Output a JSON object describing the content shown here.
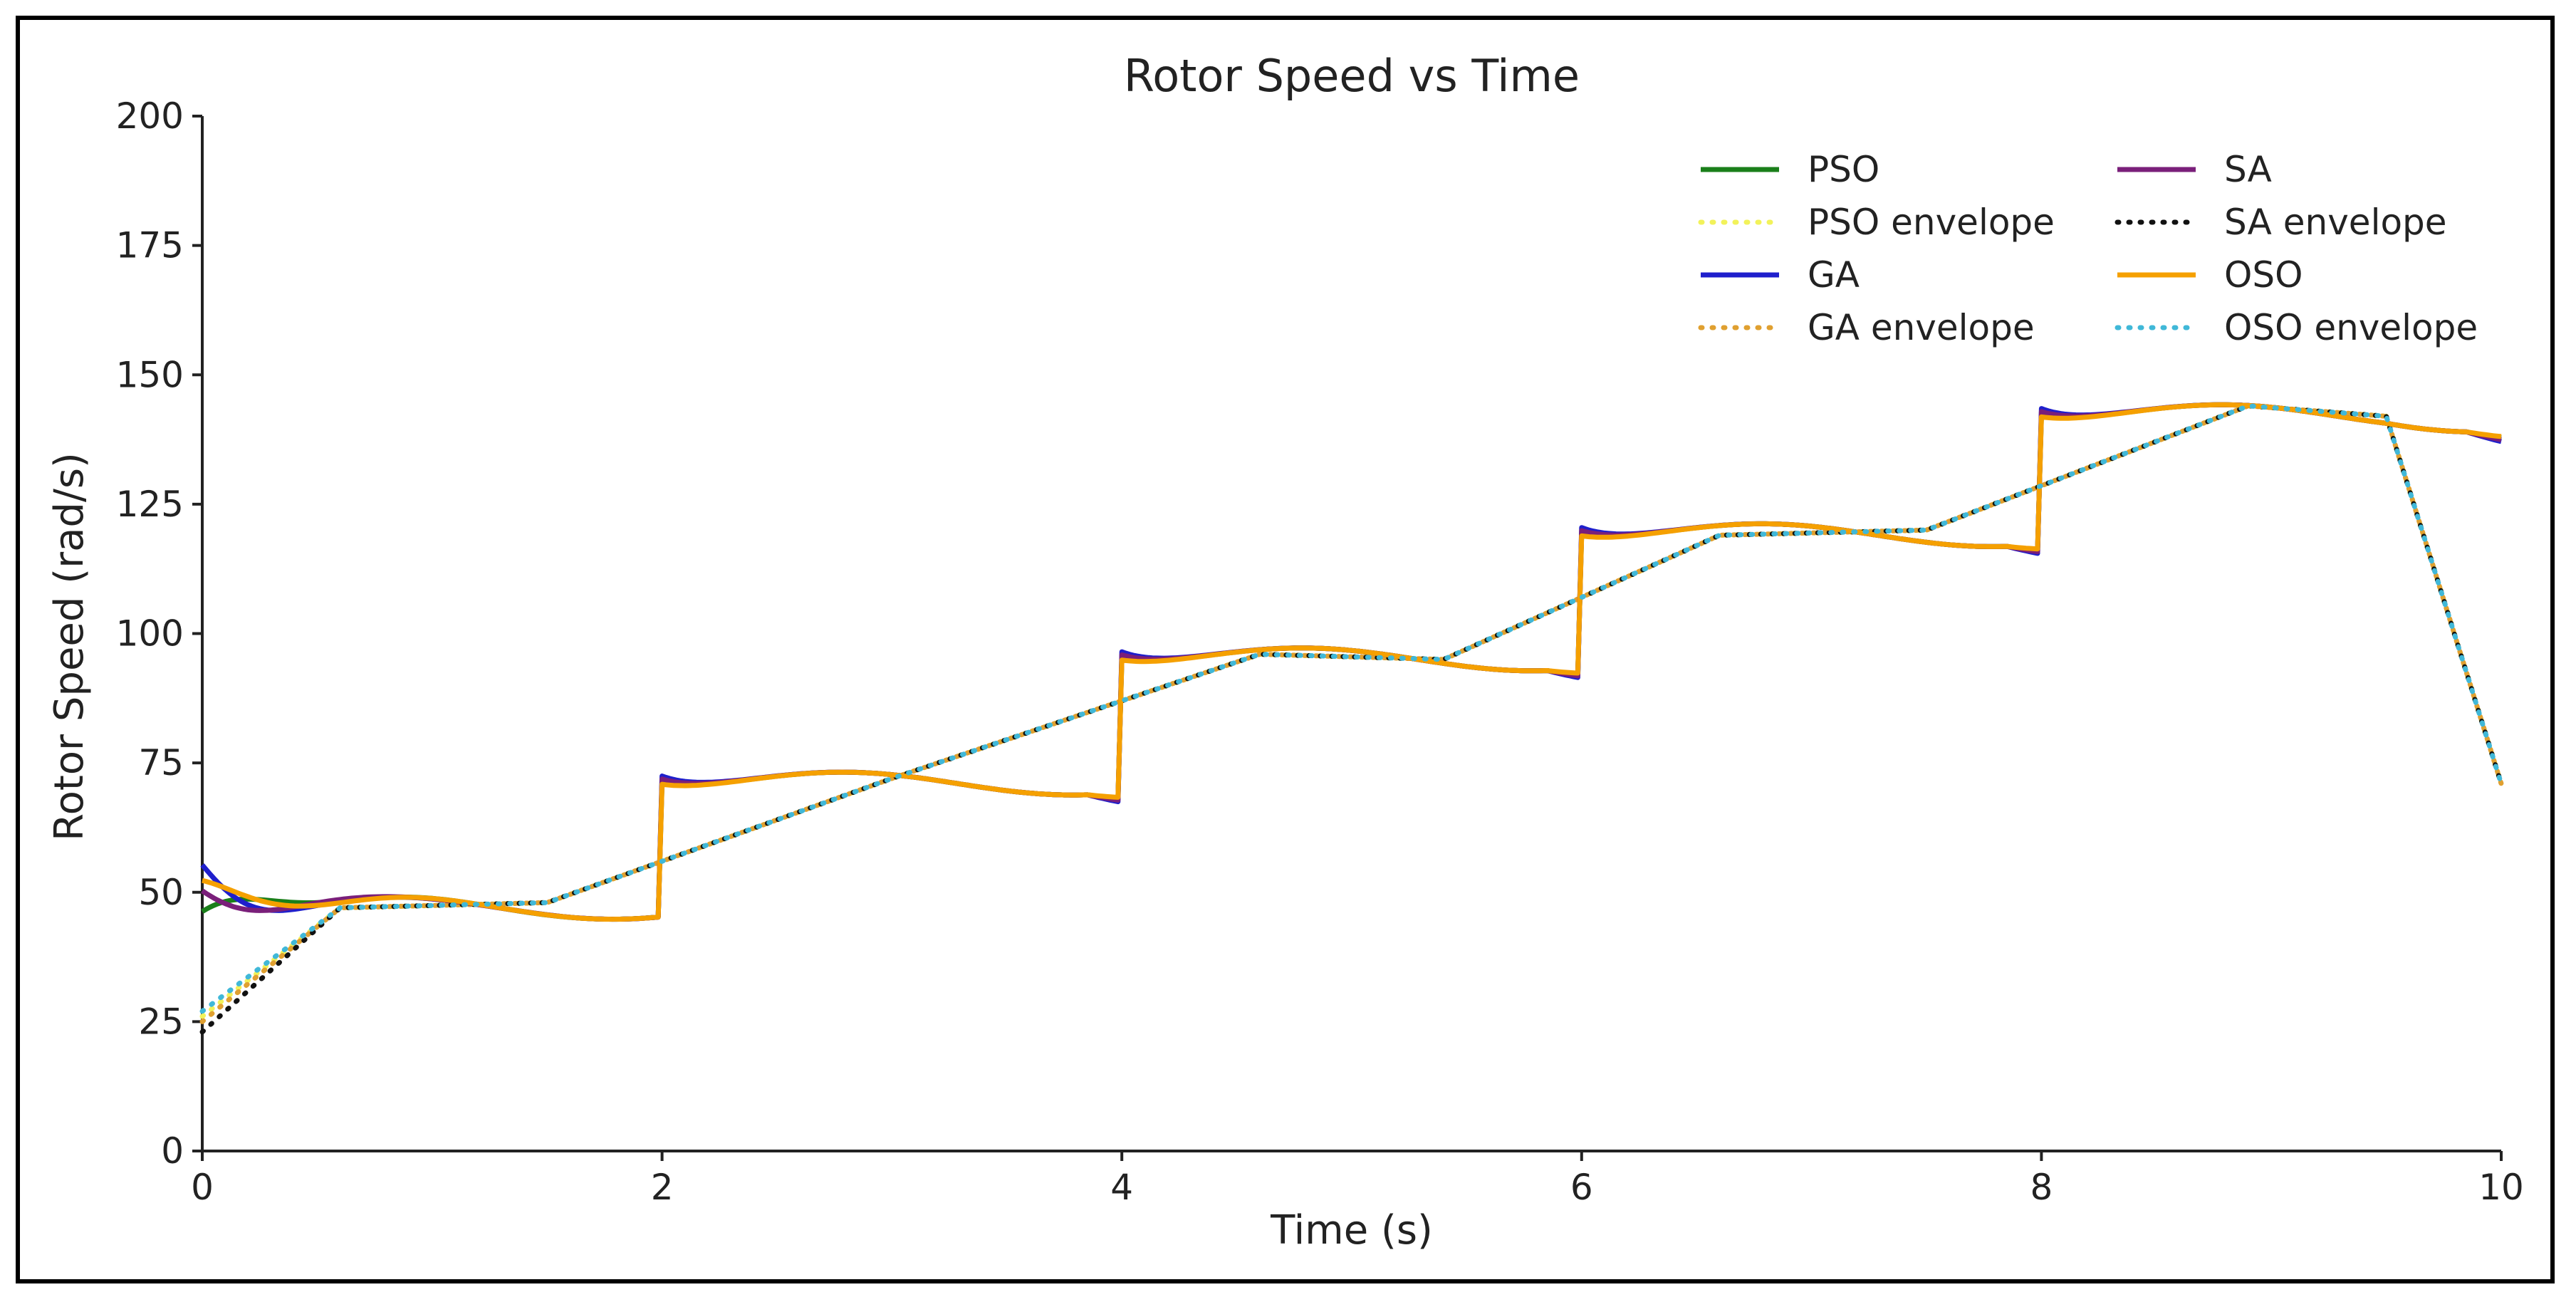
{
  "chart_data": {
    "type": "line",
    "title": "Rotor Speed vs Time",
    "xlabel": "Time (s)",
    "ylabel": "Rotor Speed (rad/s)",
    "xlim": [
      0,
      10
    ],
    "ylim": [
      0,
      200
    ],
    "xticks": [
      0,
      2,
      4,
      6,
      8,
      10
    ],
    "yticks": [
      0,
      25,
      50,
      75,
      100,
      125,
      150,
      175,
      200
    ],
    "grid": false,
    "legend_position": "top-right",
    "legend_columns": 2,
    "setpoint_steps": [
      {
        "t_start": 0,
        "t_end": 2,
        "value": 47
      },
      {
        "t_start": 2,
        "t_end": 4,
        "value": 71
      },
      {
        "t_start": 4,
        "t_end": 6,
        "value": 95
      },
      {
        "t_start": 6,
        "t_end": 8,
        "value": 119
      },
      {
        "t_start": 8,
        "t_end": 10,
        "value": 142
      }
    ],
    "envelope_points": [
      {
        "t": 0,
        "v": 24
      },
      {
        "t": 0.6,
        "v": 47
      },
      {
        "t": 1.5,
        "v": 48
      },
      {
        "t": 3,
        "v": 72
      },
      {
        "t": 4.6,
        "v": 96
      },
      {
        "t": 5.4,
        "v": 95
      },
      {
        "t": 6.6,
        "v": 119
      },
      {
        "t": 7.5,
        "v": 120
      },
      {
        "t": 8.9,
        "v": 144
      },
      {
        "t": 9.5,
        "v": 142
      },
      {
        "t": 10,
        "v": 71
      }
    ],
    "series": [
      {
        "name": "PSO",
        "style": "solid",
        "color": "#1a7f1a",
        "initial": 48,
        "overshoot": 4.0,
        "ripple": 1.0,
        "peak_t": 0.25
      },
      {
        "name": "PSO envelope",
        "style": "dotted",
        "color": "#f2f25a",
        "envelope_start": 26
      },
      {
        "name": "GA",
        "style": "solid",
        "color": "#1f1fcc",
        "initial": 57,
        "overshoot": -2.5,
        "ripple": 1.6,
        "peak_t": 0.1
      },
      {
        "name": "GA envelope",
        "style": "dotted",
        "color": "#e0a030",
        "envelope_start": 25
      },
      {
        "name": "SA",
        "style": "solid",
        "color": "#7a1f7a",
        "initial": 52,
        "overshoot": -2.0,
        "ripple": 1.3,
        "peak_t": 0.3
      },
      {
        "name": "SA envelope",
        "style": "dotted",
        "color": "#111111",
        "envelope_start": 23
      },
      {
        "name": "OSO",
        "style": "solid",
        "color": "#f5a000",
        "initial": 54,
        "overshoot": 2.0,
        "ripple": 0.8,
        "peak_t": 0.2
      },
      {
        "name": "OSO envelope",
        "style": "dotted",
        "color": "#40b8d8",
        "envelope_start": 27
      }
    ]
  }
}
